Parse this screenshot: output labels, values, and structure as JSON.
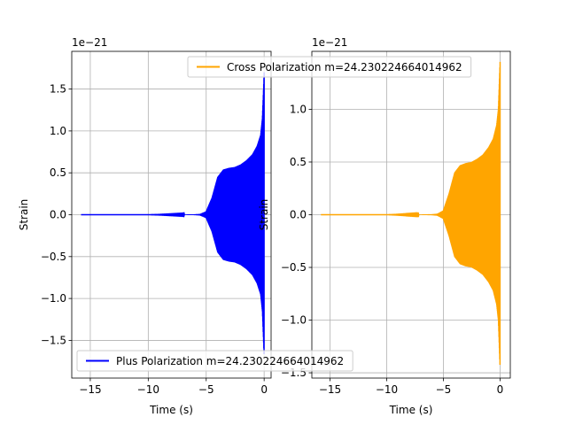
{
  "chart_data": [
    {
      "type": "line",
      "title": "",
      "xlabel": "Time (s)",
      "ylabel": "Strain",
      "offset_text": "1e−21",
      "xlim": [
        -16.6,
        0.6
      ],
      "ylim": [
        -1.95,
        1.95
      ],
      "xticks": [
        -15,
        -10,
        -5,
        0
      ],
      "xtick_labels": [
        "−15",
        "−10",
        "−5",
        "0"
      ],
      "yticks": [
        -1.5,
        -1.0,
        -0.5,
        0.0,
        0.5,
        1.0,
        1.5
      ],
      "ytick_labels": [
        "−1.5",
        "−1.0",
        "−0.5",
        "0.0",
        "0.5",
        "1.0",
        "1.5"
      ],
      "grid": true,
      "legend_position": "lower-left",
      "series": [
        {
          "name": "Plus Polarization m=24.230224664014962",
          "color": "#0000ff",
          "x_range": [
            -15.8,
            0.0
          ],
          "envelope": {
            "x": [
              -15.8,
              -10,
              -7,
              -6,
              -5.5,
              -5,
              -4.5,
              -4,
              -3.5,
              -3,
              -2.5,
              -2,
              -1.5,
              -1,
              -0.6,
              -0.3,
              -0.15,
              -0.05,
              0.0
            ],
            "amplitude": [
              0.0,
              0.0,
              0.002,
              0.005,
              0.01,
              0.04,
              0.2,
              0.45,
              0.54,
              0.56,
              0.57,
              0.6,
              0.65,
              0.72,
              0.82,
              0.95,
              1.15,
              1.5,
              1.7
            ]
          }
        }
      ]
    },
    {
      "type": "line",
      "title": "",
      "xlabel": "Time (s)",
      "ylabel": "Strain",
      "offset_text": "1e−21",
      "xlim": [
        -16.6,
        0.9
      ],
      "ylim": [
        -1.55,
        1.55
      ],
      "xticks": [
        -15,
        -10,
        -5,
        0
      ],
      "xtick_labels": [
        "−15",
        "−10",
        "−5",
        "0"
      ],
      "yticks": [
        -1.5,
        -1.0,
        -0.5,
        0.0,
        0.5,
        1.0
      ],
      "ytick_labels": [
        "−1.5",
        "−1.0",
        "−0.5",
        "0.0",
        "0.5",
        "1.0"
      ],
      "grid": true,
      "legend_position": "top-right",
      "series": [
        {
          "name": "Cross Polarization m=24.230224664014962",
          "color": "#ffa500",
          "x_range": [
            -15.8,
            0.0
          ],
          "envelope": {
            "x": [
              -15.8,
              -10,
              -7,
              -6,
              -5.5,
              -5,
              -4.5,
              -4,
              -3.5,
              -3,
              -2.5,
              -2,
              -1.5,
              -1,
              -0.6,
              -0.3,
              -0.15,
              -0.05,
              0.0
            ],
            "amplitude": [
              0.0,
              0.0,
              0.002,
              0.005,
              0.01,
              0.04,
              0.2,
              0.4,
              0.47,
              0.49,
              0.5,
              0.53,
              0.57,
              0.64,
              0.72,
              0.85,
              1.0,
              1.3,
              1.45
            ]
          }
        }
      ]
    }
  ]
}
